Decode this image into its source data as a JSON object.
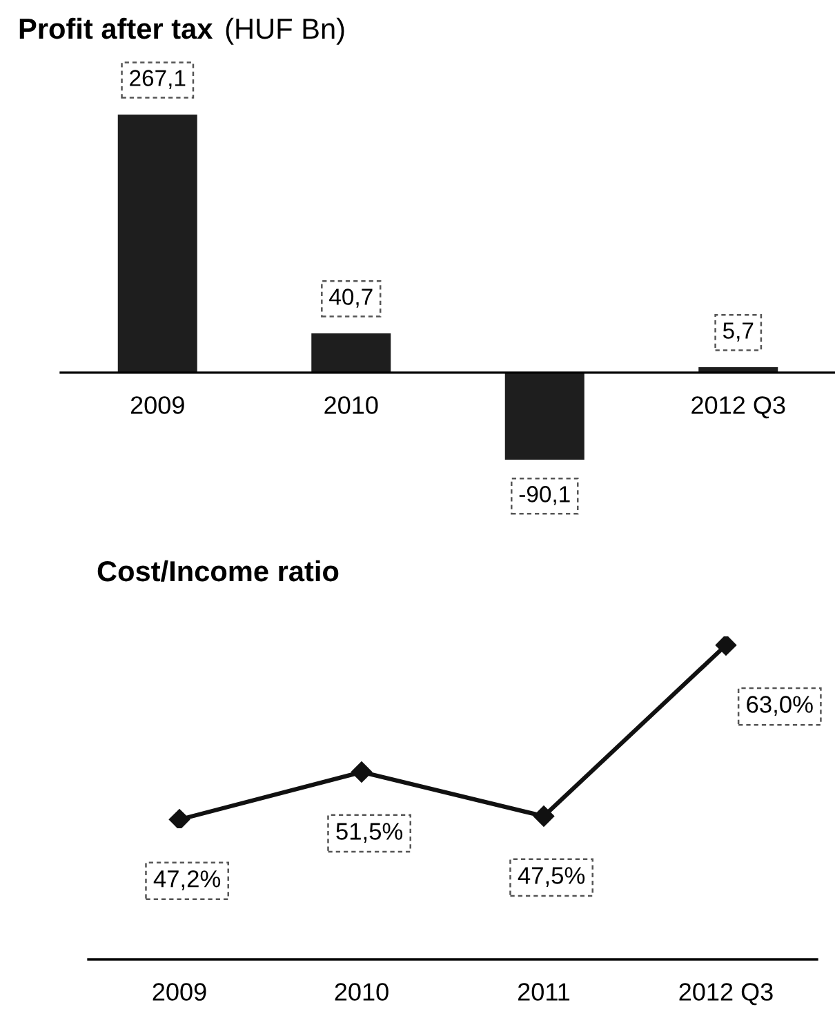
{
  "chart_data": [
    {
      "type": "bar",
      "title": "Profit after tax",
      "subtitle": "(HUF Bn)",
      "categories": [
        "2009",
        "2010",
        null,
        "2012 Q3"
      ],
      "values": [
        267.1,
        40.7,
        -90.1,
        5.7
      ],
      "value_labels": [
        "267,1",
        "40,7",
        "-90,1",
        "5,7"
      ],
      "color": "#1e1e1e",
      "tick_labels": "x"
    },
    {
      "type": "line",
      "title": "Cost/Income ratio",
      "categories": [
        "2009",
        "2010",
        "2011",
        "2012 Q3"
      ],
      "values": [
        47.2,
        51.5,
        47.5,
        63.0
      ],
      "value_labels": [
        "47,2%",
        "51,5%",
        "47,5%",
        "63,0%"
      ],
      "color": "#111111",
      "marker": "diamond",
      "line_style": "solid",
      "tick_labels": "x"
    }
  ]
}
